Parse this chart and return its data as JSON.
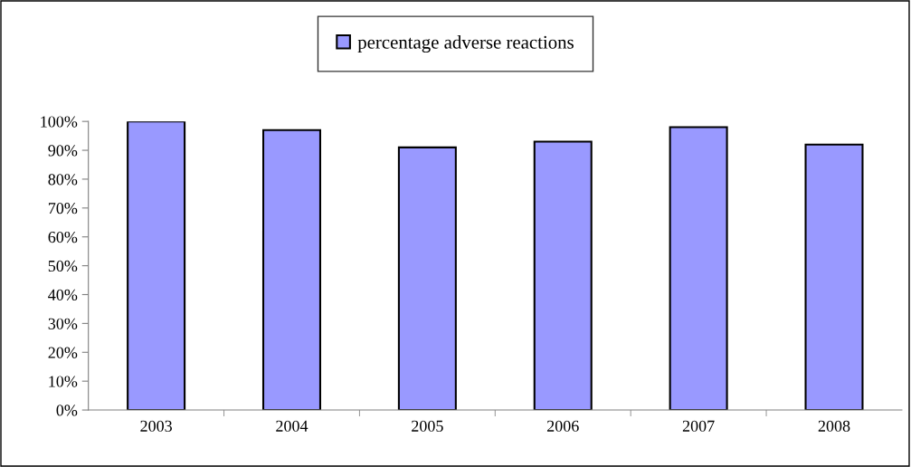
{
  "chart_data": {
    "type": "bar",
    "categories": [
      "2003",
      "2004",
      "2005",
      "2006",
      "2007",
      "2008"
    ],
    "series": [
      {
        "name": "percentage adverse reactions",
        "color": "#9999ff",
        "values": [
          100,
          97,
          91,
          93,
          98,
          92
        ]
      }
    ],
    "ylim": [
      0,
      100
    ],
    "yticks": [
      {
        "value": 0,
        "label": "0%"
      },
      {
        "value": 10,
        "label": "10%"
      },
      {
        "value": 20,
        "label": "20%"
      },
      {
        "value": 30,
        "label": "30%"
      },
      {
        "value": 40,
        "label": "40%"
      },
      {
        "value": 50,
        "label": "50%"
      },
      {
        "value": 60,
        "label": "60%"
      },
      {
        "value": 70,
        "label": "70%"
      },
      {
        "value": 80,
        "label": "80%"
      },
      {
        "value": 90,
        "label": "90%"
      },
      {
        "value": 100,
        "label": "100%"
      }
    ],
    "grid": false,
    "legend": "top"
  }
}
